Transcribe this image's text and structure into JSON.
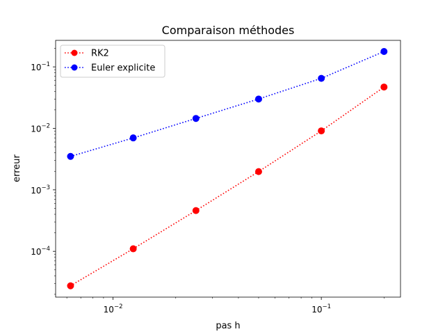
{
  "chart_data": {
    "type": "line",
    "title": "Comparaison méthodes",
    "xlabel": "pas h",
    "ylabel": "erreur",
    "xscale": "log",
    "yscale": "log",
    "xlim": [
      0.0053,
      0.24
    ],
    "ylim": [
      1.8e-05,
      0.27
    ],
    "xticks": [
      {
        "value": 0.01,
        "base": "10",
        "exp": "−2"
      },
      {
        "value": 0.1,
        "base": "10",
        "exp": "−1"
      }
    ],
    "yticks": [
      {
        "value": 0.0001,
        "base": "10",
        "exp": "−4"
      },
      {
        "value": 0.001,
        "base": "10",
        "exp": "−3"
      },
      {
        "value": 0.01,
        "base": "10",
        "exp": "−2"
      },
      {
        "value": 0.1,
        "base": "10",
        "exp": "−1"
      }
    ],
    "x": [
      0.00625,
      0.0125,
      0.025,
      0.05,
      0.1,
      0.2
    ],
    "series": [
      {
        "name": "RK2",
        "color": "#ff0000",
        "linestyle": "dotted",
        "marker": "circle",
        "values": [
          2.75e-05,
          0.00011,
          0.00046,
          0.00198,
          0.0091,
          0.047
        ]
      },
      {
        "name": "Euler explicite",
        "color": "#0000ff",
        "linestyle": "dotted",
        "marker": "circle",
        "values": [
          0.0035,
          0.007,
          0.0145,
          0.03,
          0.065,
          0.178
        ]
      }
    ],
    "legend": "top-left",
    "grid": false
  }
}
